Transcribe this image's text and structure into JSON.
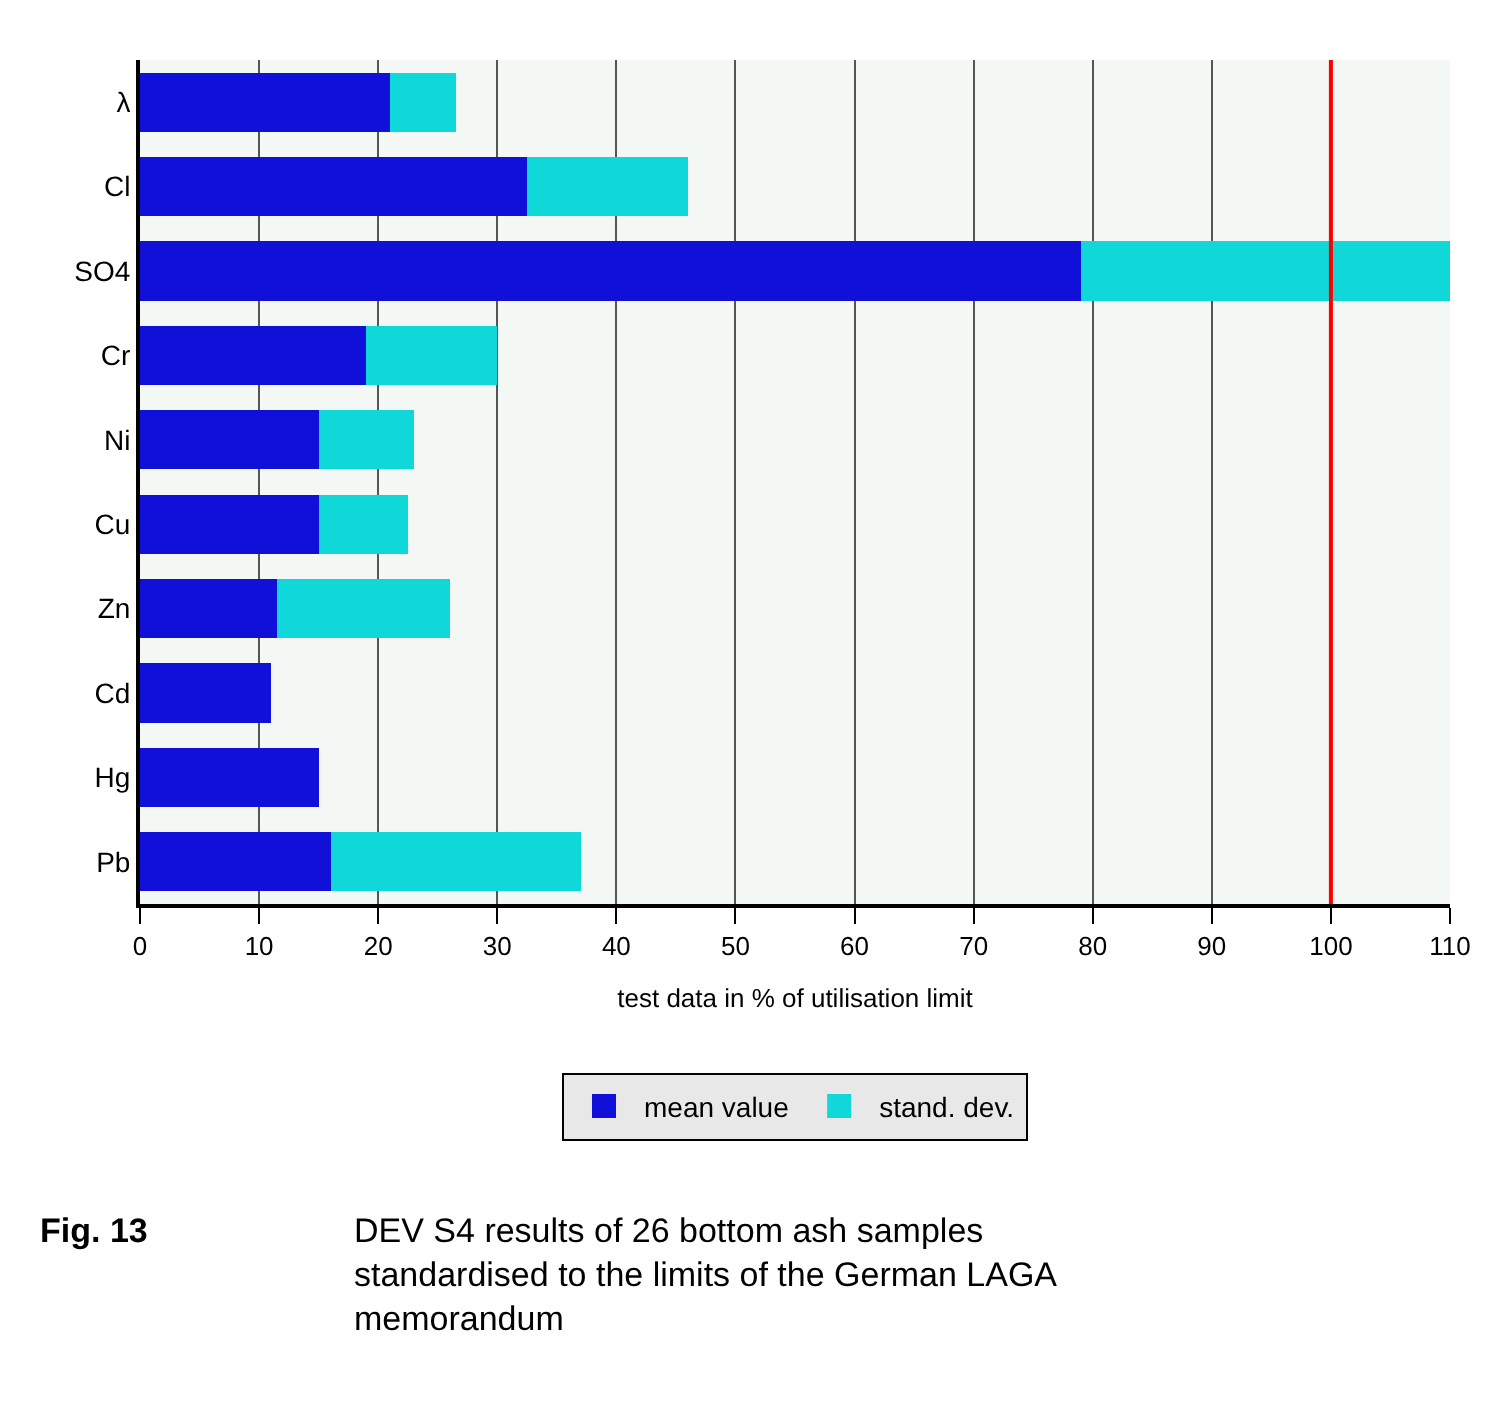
{
  "chart_data": {
    "type": "bar",
    "orientation": "horizontal",
    "stacked": true,
    "categories": [
      "λ",
      "Cl",
      "SO4",
      "Cr",
      "Ni",
      "Cu",
      "Zn",
      "Cd",
      "Hg",
      "Pb"
    ],
    "series": [
      {
        "name": "mean value",
        "color": "#1010d8",
        "values": [
          21,
          32.5,
          79,
          19,
          15,
          15,
          11.5,
          11,
          15,
          16
        ]
      },
      {
        "name": "stand. dev.",
        "color": "#10d8d8",
        "values": [
          5.5,
          13.5,
          31,
          11,
          8,
          7.5,
          14.5,
          0,
          0,
          21
        ]
      }
    ],
    "xlabel": "test data in % of utilisation limit",
    "xlim": [
      0,
      110
    ],
    "xticks": [
      0,
      10,
      20,
      30,
      40,
      50,
      60,
      70,
      80,
      90,
      100,
      110
    ],
    "grid": "x",
    "legend": "bottom",
    "ref_lines": [
      {
        "axis": "x",
        "value": 100,
        "color": "#ff0000"
      }
    ],
    "annotations": [
      "Fig. 13",
      "DEV S4 results of 26 bottom ash samples standardised to the limits of the German LAGA memorandum"
    ]
  }
}
